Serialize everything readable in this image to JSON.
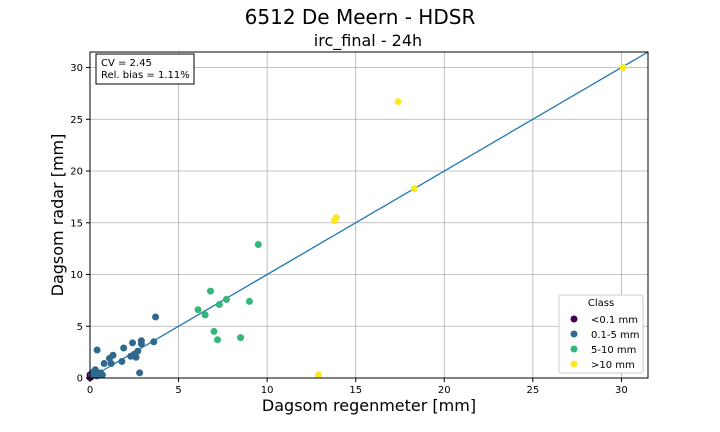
{
  "chart_data": {
    "type": "scatter",
    "title": "6512 De Meern - HDSR",
    "subtitle": "irc_final - 24h",
    "xlabel": "Dagsom regenmeter [mm]",
    "ylabel": "Dagsom radar [mm]",
    "xlim": [
      0,
      31.5
    ],
    "ylim": [
      0,
      31.5
    ],
    "xticks": [
      0,
      5,
      10,
      15,
      20,
      25,
      30
    ],
    "yticks": [
      0,
      5,
      10,
      15,
      20,
      25,
      30
    ],
    "grid": true,
    "stats": {
      "cv": "CV = 2.45",
      "bias": "Rel. bias = 1.11%"
    },
    "fit_line": {
      "x": [
        0,
        31.5
      ],
      "y": [
        0,
        31.5
      ],
      "color": "#1f77b4"
    },
    "legend": {
      "title": "Class",
      "placement": "lower-right"
    },
    "series": [
      {
        "name": "<0.1 mm",
        "color": "#440154",
        "points": [
          [
            0.0,
            0.05
          ],
          [
            0.05,
            0.1
          ],
          [
            0.0,
            0.3
          ]
        ]
      },
      {
        "name": "0.1-5 mm",
        "color": "#31688e",
        "points": [
          [
            0.1,
            0.3
          ],
          [
            0.2,
            0.6
          ],
          [
            0.3,
            0.8
          ],
          [
            0.4,
            0.2
          ],
          [
            0.5,
            0.4
          ],
          [
            0.6,
            0.5
          ],
          [
            0.7,
            0.3
          ],
          [
            0.4,
            2.7
          ],
          [
            0.8,
            1.4
          ],
          [
            1.1,
            1.9
          ],
          [
            1.3,
            2.2
          ],
          [
            1.2,
            1.4
          ],
          [
            1.8,
            1.6
          ],
          [
            1.9,
            2.9
          ],
          [
            2.3,
            2.1
          ],
          [
            2.4,
            3.4
          ],
          [
            2.5,
            2.3
          ],
          [
            2.6,
            2.0
          ],
          [
            2.7,
            2.6
          ],
          [
            2.9,
            3.3
          ],
          [
            2.9,
            3.6
          ],
          [
            2.8,
            0.5
          ],
          [
            3.6,
            3.5
          ],
          [
            3.7,
            5.9
          ]
        ]
      },
      {
        "name": "5-10 mm",
        "color": "#35b779",
        "points": [
          [
            6.1,
            6.6
          ],
          [
            6.5,
            6.1
          ],
          [
            6.8,
            8.4
          ],
          [
            7.0,
            4.5
          ],
          [
            7.2,
            3.7
          ],
          [
            7.3,
            7.1
          ],
          [
            7.7,
            7.6
          ],
          [
            8.5,
            3.9
          ],
          [
            9.0,
            7.4
          ],
          [
            9.5,
            12.9
          ]
        ]
      },
      {
        "name": ">10 mm",
        "color": "#fde725",
        "points": [
          [
            12.9,
            0.3
          ],
          [
            13.8,
            15.2
          ],
          [
            13.9,
            15.5
          ],
          [
            17.4,
            26.7
          ],
          [
            18.3,
            18.3
          ],
          [
            30.1,
            30.0
          ]
        ]
      }
    ]
  }
}
